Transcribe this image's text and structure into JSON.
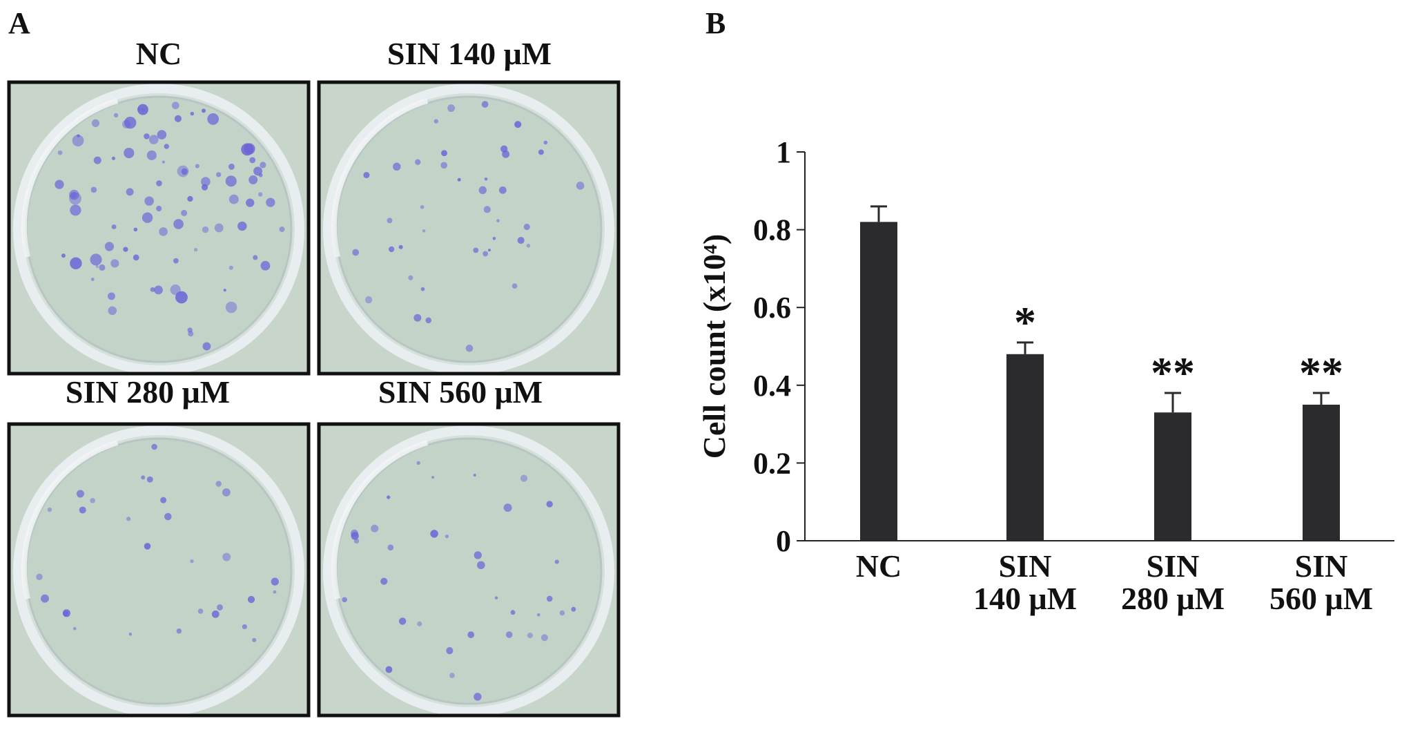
{
  "panel_labels": [
    "A",
    "B"
  ],
  "photos": [
    {
      "title": "NC"
    },
    {
      "title": "SIN 140 μM"
    },
    {
      "title": "SIN 280 μM"
    },
    {
      "title": "SIN 560 μM"
    }
  ],
  "chart_data": {
    "type": "bar",
    "y_label": "Cell count (x10⁴)",
    "categories": [
      [
        "NC"
      ],
      [
        "SIN",
        "140 μM"
      ],
      [
        "SIN",
        "280 μM"
      ],
      [
        "SIN",
        "560 μM"
      ]
    ],
    "values": [
      0.82,
      0.48,
      0.33,
      0.35
    ],
    "errors": [
      0.04,
      0.03,
      0.05,
      0.03
    ],
    "significance": [
      null,
      "*",
      "**",
      "**"
    ],
    "color": "#2b2b2d",
    "ylim": [
      0,
      1
    ],
    "yticks": [
      0,
      0.2,
      0.4,
      0.6,
      0.8,
      1
    ],
    "grid": false
  }
}
